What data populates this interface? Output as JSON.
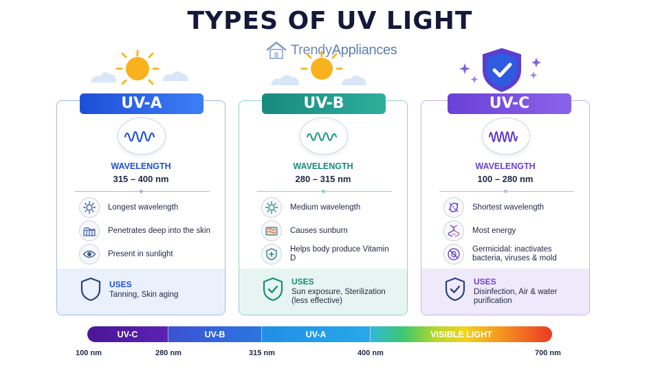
{
  "title": "TYPES OF UV LIGHT",
  "logo": {
    "part1": "Trendy",
    "part2": "Appliances"
  },
  "cards": {
    "uva": {
      "name": "UV-A",
      "wavelength_label": "WAVELENGTH",
      "wavelength_range": "315 – 400 nm",
      "features": [
        {
          "icon": "sun-icon",
          "text": "Longest wavelength"
        },
        {
          "icon": "skin-layers-icon",
          "text": "Penetrates deep into the skin"
        },
        {
          "icon": "eye-icon",
          "text": "Present in sunlight"
        }
      ],
      "uses_label": "USES",
      "uses_text": "Tanning, Skin aging",
      "accent": "#1d4fd8"
    },
    "uvb": {
      "name": "UV-B",
      "wavelength_label": "WAVELENGTH",
      "wavelength_range": "280 – 315 nm",
      "features": [
        {
          "icon": "sun-icon",
          "text": "Medium wavelength"
        },
        {
          "icon": "sunburn-icon",
          "text": "Causes sunburn"
        },
        {
          "icon": "shield-plus-icon",
          "text": "Helps body produce Vitamin D"
        }
      ],
      "uses_label": "USES",
      "uses_text": "Sun exposure, Sterilization (less effective)",
      "accent": "#178a7e"
    },
    "uvc": {
      "name": "UV-C",
      "wavelength_label": "WAVELENGTH",
      "wavelength_range": "100 – 280 nm",
      "features": [
        {
          "icon": "bacteria-icon",
          "text": "Shortest wavelength"
        },
        {
          "icon": "dna-icon",
          "text": "Most energy"
        },
        {
          "icon": "no-bacteria-icon",
          "text": "Germicidal: inactivates bacteria, viruses & mold"
        }
      ],
      "uses_label": "USES",
      "uses_text": "Disinfection, Air & water purification",
      "accent": "#6a40d6"
    }
  },
  "spectrum": {
    "segments": [
      "UV-C",
      "UV-B",
      "UV-A",
      "VISIBLE LIGHT"
    ],
    "ticks": [
      "100 nm",
      "280 nm",
      "315 nm",
      "400 nm",
      "700 nm"
    ]
  }
}
